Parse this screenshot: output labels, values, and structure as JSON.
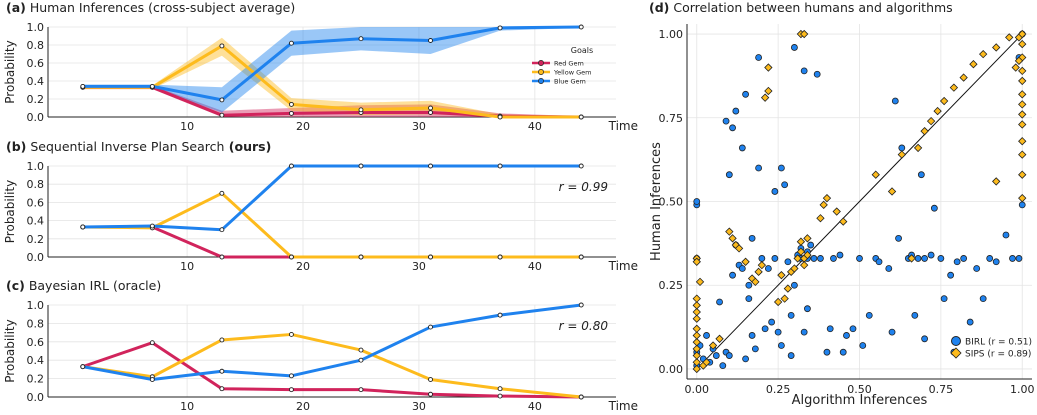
{
  "colors": {
    "red": "#d1245c",
    "yellow": "#fdbb1d",
    "blue": "#1f82ee"
  },
  "chart_data": [
    {
      "type": "line",
      "panel_label": "(a)",
      "title": "Human Inferences (cross-subject average)",
      "title_bold": "",
      "xlabel": "Time",
      "ylabel": "Probability",
      "x_ticks": [
        10,
        20,
        30,
        40
      ],
      "y_ticks": [
        "0.0",
        "0.2",
        "0.4",
        "0.6",
        "0.8",
        "1.0"
      ],
      "xlim": [
        -2,
        47
      ],
      "ylim": [
        0,
        1
      ],
      "grid": true,
      "legend_title": "Goals",
      "legend_position": "right",
      "annotation": "",
      "x": [
        1,
        7,
        13,
        19,
        25,
        31,
        37,
        44
      ],
      "series": [
        {
          "name": "Red Gem",
          "color": "red",
          "values": [
            0.33,
            0.33,
            0.02,
            0.04,
            0.05,
            0.05,
            0.01,
            0.0
          ],
          "upper": [
            0.35,
            0.35,
            0.07,
            0.1,
            0.13,
            0.14,
            0.04,
            0.01
          ],
          "lower": [
            0.31,
            0.31,
            0.0,
            0.0,
            0.0,
            0.0,
            0.0,
            0.0
          ]
        },
        {
          "name": "Yellow Gem",
          "color": "yellow",
          "values": [
            0.33,
            0.33,
            0.79,
            0.14,
            0.08,
            0.1,
            0.0,
            0.0
          ],
          "upper": [
            0.35,
            0.35,
            0.88,
            0.21,
            0.16,
            0.18,
            0.03,
            0.01
          ],
          "lower": [
            0.31,
            0.31,
            0.68,
            0.07,
            0.02,
            0.03,
            0.0,
            0.0
          ]
        },
        {
          "name": "Blue Gem",
          "color": "blue",
          "values": [
            0.34,
            0.34,
            0.19,
            0.82,
            0.87,
            0.85,
            0.99,
            1.0
          ],
          "upper": [
            0.36,
            0.36,
            0.33,
            0.96,
            1.0,
            1.0,
            1.0,
            1.0
          ],
          "lower": [
            0.32,
            0.32,
            0.05,
            0.68,
            0.74,
            0.7,
            0.96,
            0.99
          ]
        }
      ]
    },
    {
      "type": "line",
      "panel_label": "(b)",
      "title": "Sequential Inverse Plan Search",
      "title_bold": "(ours)",
      "xlabel": "Time",
      "ylabel": "Probability",
      "x_ticks": [
        10,
        20,
        30,
        40
      ],
      "y_ticks": [
        "0.0",
        "0.2",
        "0.4",
        "0.6",
        "0.8",
        "1.0"
      ],
      "xlim": [
        -2,
        47
      ],
      "ylim": [
        0,
        1
      ],
      "grid": true,
      "annotation": "r = 0.99",
      "x": [
        1,
        7,
        13,
        19,
        25,
        31,
        37,
        44
      ],
      "series": [
        {
          "color": "red",
          "values": [
            0.33,
            0.33,
            0.0,
            0.0,
            0.0,
            0.0,
            0.0,
            0.0
          ]
        },
        {
          "color": "yellow",
          "values": [
            0.33,
            0.32,
            0.7,
            0.0,
            0.0,
            0.0,
            0.0,
            0.0
          ]
        },
        {
          "color": "blue",
          "values": [
            0.33,
            0.34,
            0.3,
            1.0,
            1.0,
            1.0,
            1.0,
            1.0
          ]
        }
      ]
    },
    {
      "type": "line",
      "panel_label": "(c)",
      "title": "Bayesian IRL (oracle)",
      "title_bold": "",
      "xlabel": "Time",
      "ylabel": "Probability",
      "x_ticks": [
        10,
        20,
        30,
        40
      ],
      "y_ticks": [
        "0.0",
        "0.2",
        "0.4",
        "0.6",
        "0.8",
        "1.0"
      ],
      "xlim": [
        -2,
        47
      ],
      "ylim": [
        0,
        1
      ],
      "grid": true,
      "annotation": "r = 0.80",
      "x": [
        1,
        7,
        13,
        19,
        25,
        31,
        37,
        44
      ],
      "series": [
        {
          "color": "red",
          "values": [
            0.33,
            0.59,
            0.09,
            0.08,
            0.08,
            0.03,
            0.01,
            0.0
          ]
        },
        {
          "color": "yellow",
          "values": [
            0.33,
            0.22,
            0.62,
            0.68,
            0.51,
            0.19,
            0.09,
            0.0
          ]
        },
        {
          "color": "blue",
          "values": [
            0.33,
            0.19,
            0.28,
            0.23,
            0.4,
            0.76,
            0.89,
            1.0
          ]
        }
      ]
    },
    {
      "type": "scatter",
      "panel_label": "(d)",
      "title": "Correlation between humans and algorithms",
      "xlabel": "Algorithm Inferences",
      "ylabel": "Human Inferences",
      "x_ticks": [
        "0.00",
        "0.25",
        "0.50",
        "0.75",
        "1.00"
      ],
      "y_ticks": [
        "0.00",
        "0.25",
        "0.50",
        "0.75",
        "1.00"
      ],
      "xlim": [
        -0.03,
        1.03
      ],
      "ylim": [
        -0.03,
        1.03
      ],
      "grid": true,
      "legend_position": "bottom-right",
      "diagonal": [
        [
          0,
          0
        ],
        [
          1,
          1
        ]
      ],
      "series": [
        {
          "name": "BIRL (r = 0.51)",
          "color": "blue",
          "marker": "circle",
          "points": [
            [
              0.0,
              0.01
            ],
            [
              0.0,
              0.05
            ],
            [
              0.0,
              0.33
            ],
            [
              0.0,
              0.49
            ],
            [
              0.0,
              0.5
            ],
            [
              0.01,
              0.07
            ],
            [
              0.02,
              0.03
            ],
            [
              0.03,
              0.1
            ],
            [
              0.04,
              0.02
            ],
            [
              0.05,
              0.06
            ],
            [
              0.06,
              0.04
            ],
            [
              0.07,
              0.2
            ],
            [
              0.08,
              0.01
            ],
            [
              0.09,
              0.05
            ],
            [
              0.1,
              0.04
            ],
            [
              0.09,
              0.74
            ],
            [
              0.11,
              0.72
            ],
            [
              0.12,
              0.77
            ],
            [
              0.1,
              0.58
            ],
            [
              0.12,
              0.37
            ],
            [
              0.11,
              0.28
            ],
            [
              0.13,
              0.31
            ],
            [
              0.14,
              0.66
            ],
            [
              0.15,
              0.82
            ],
            [
              0.14,
              0.3
            ],
            [
              0.15,
              0.03
            ],
            [
              0.16,
              0.25
            ],
            [
              0.16,
              0.21
            ],
            [
              0.17,
              0.39
            ],
            [
              0.17,
              0.1
            ],
            [
              0.18,
              0.06
            ],
            [
              0.19,
              0.6
            ],
            [
              0.19,
              0.93
            ],
            [
              0.2,
              0.33
            ],
            [
              0.21,
              0.12
            ],
            [
              0.22,
              0.3
            ],
            [
              0.23,
              0.14
            ],
            [
              0.24,
              0.53
            ],
            [
              0.24,
              0.33
            ],
            [
              0.25,
              0.11
            ],
            [
              0.26,
              0.07
            ],
            [
              0.26,
              0.6
            ],
            [
              0.27,
              0.55
            ],
            [
              0.28,
              0.32
            ],
            [
              0.29,
              0.04
            ],
            [
              0.29,
              0.16
            ],
            [
              0.3,
              0.96
            ],
            [
              0.3,
              0.25
            ],
            [
              0.31,
              0.34
            ],
            [
              0.32,
              0.33
            ],
            [
              0.33,
              0.33
            ],
            [
              0.32,
              0.36
            ],
            [
              0.33,
              0.89
            ],
            [
              0.34,
              0.18
            ],
            [
              0.34,
              0.35
            ],
            [
              0.33,
              0.11
            ],
            [
              0.34,
              0.33
            ],
            [
              0.35,
              0.37
            ],
            [
              0.36,
              0.33
            ],
            [
              0.37,
              0.88
            ],
            [
              0.38,
              0.33
            ],
            [
              0.4,
              0.05
            ],
            [
              0.41,
              0.12
            ],
            [
              0.42,
              0.33
            ],
            [
              0.44,
              0.34
            ],
            [
              0.45,
              0.05
            ],
            [
              0.46,
              0.1
            ],
            [
              0.48,
              0.12
            ],
            [
              0.5,
              0.33
            ],
            [
              0.51,
              0.07
            ],
            [
              0.53,
              0.16
            ],
            [
              0.55,
              0.33
            ],
            [
              0.56,
              0.32
            ],
            [
              0.59,
              0.3
            ],
            [
              0.6,
              0.11
            ],
            [
              0.61,
              0.8
            ],
            [
              0.62,
              0.39
            ],
            [
              0.63,
              0.66
            ],
            [
              0.65,
              0.33
            ],
            [
              0.66,
              0.34
            ],
            [
              0.67,
              0.16
            ],
            [
              0.68,
              0.33
            ],
            [
              0.69,
              0.58
            ],
            [
              0.7,
              0.09
            ],
            [
              0.7,
              0.33
            ],
            [
              0.72,
              0.34
            ],
            [
              0.73,
              0.48
            ],
            [
              0.75,
              0.33
            ],
            [
              0.76,
              0.21
            ],
            [
              0.78,
              0.28
            ],
            [
              0.79,
              0.05
            ],
            [
              0.8,
              0.32
            ],
            [
              0.82,
              0.33
            ],
            [
              0.84,
              0.14
            ],
            [
              0.86,
              0.3
            ],
            [
              0.88,
              0.21
            ],
            [
              0.9,
              0.33
            ],
            [
              0.92,
              0.32
            ],
            [
              0.95,
              0.4
            ],
            [
              0.97,
              0.33
            ],
            [
              0.99,
              0.33
            ],
            [
              1.0,
              0.49
            ],
            [
              1.0,
              1.0
            ],
            [
              0.99,
              0.93
            ]
          ]
        },
        {
          "name": "SIPS (r = 0.89)",
          "color": "yellow",
          "marker": "diamond",
          "points": [
            [
              0.0,
              0.0
            ],
            [
              0.0,
              0.02
            ],
            [
              0.0,
              0.04
            ],
            [
              0.0,
              0.06
            ],
            [
              0.0,
              0.08
            ],
            [
              0.0,
              0.1
            ],
            [
              0.0,
              0.12
            ],
            [
              0.0,
              0.15
            ],
            [
              0.0,
              0.17
            ],
            [
              0.0,
              0.19
            ],
            [
              0.0,
              0.21
            ],
            [
              0.0,
              0.33
            ],
            [
              0.0,
              0.32
            ],
            [
              0.01,
              0.26
            ],
            [
              0.02,
              0.01
            ],
            [
              0.03,
              0.02
            ],
            [
              0.05,
              0.07
            ],
            [
              0.07,
              0.09
            ],
            [
              0.1,
              0.41
            ],
            [
              0.11,
              0.39
            ],
            [
              0.12,
              0.37
            ],
            [
              0.13,
              0.36
            ],
            [
              0.15,
              0.32
            ],
            [
              0.17,
              0.27
            ],
            [
              0.18,
              0.26
            ],
            [
              0.19,
              0.29
            ],
            [
              0.2,
              0.31
            ],
            [
              0.21,
              0.81
            ],
            [
              0.22,
              0.83
            ],
            [
              0.22,
              0.9
            ],
            [
              0.25,
              0.2
            ],
            [
              0.26,
              0.28
            ],
            [
              0.27,
              0.21
            ],
            [
              0.28,
              0.24
            ],
            [
              0.29,
              0.29
            ],
            [
              0.3,
              0.3
            ],
            [
              0.31,
              0.33
            ],
            [
              0.32,
              0.35
            ],
            [
              0.32,
              0.38
            ],
            [
              0.33,
              0.33
            ],
            [
              0.34,
              0.34
            ],
            [
              0.34,
              0.39
            ],
            [
              0.33,
              0.31
            ],
            [
              0.32,
              1.0
            ],
            [
              0.33,
              1.0
            ],
            [
              0.38,
              0.45
            ],
            [
              0.39,
              0.49
            ],
            [
              0.4,
              0.51
            ],
            [
              0.43,
              0.47
            ],
            [
              0.45,
              0.44
            ],
            [
              0.55,
              0.58
            ],
            [
              0.6,
              0.53
            ],
            [
              0.63,
              0.64
            ],
            [
              0.66,
              0.33
            ],
            [
              0.68,
              0.66
            ],
            [
              0.7,
              0.71
            ],
            [
              0.72,
              0.74
            ],
            [
              0.74,
              0.77
            ],
            [
              0.76,
              0.8
            ],
            [
              0.79,
              0.84
            ],
            [
              0.82,
              0.87
            ],
            [
              0.85,
              0.91
            ],
            [
              0.88,
              0.94
            ],
            [
              0.92,
              0.96
            ],
            [
              0.92,
              0.56
            ],
            [
              0.96,
              0.99
            ],
            [
              0.99,
              0.99
            ],
            [
              0.98,
              0.9
            ],
            [
              1.0,
              1.0
            ],
            [
              1.0,
              0.97
            ],
            [
              1.0,
              0.93
            ],
            [
              1.0,
              0.89
            ],
            [
              1.0,
              0.86
            ],
            [
              1.0,
              0.82
            ],
            [
              1.0,
              0.79
            ],
            [
              1.0,
              0.76
            ],
            [
              1.0,
              0.73
            ],
            [
              1.0,
              0.68
            ],
            [
              1.0,
              0.64
            ],
            [
              1.0,
              0.58
            ],
            [
              1.0,
              0.51
            ],
            [
              0.99,
              0.92
            ]
          ]
        }
      ]
    }
  ]
}
